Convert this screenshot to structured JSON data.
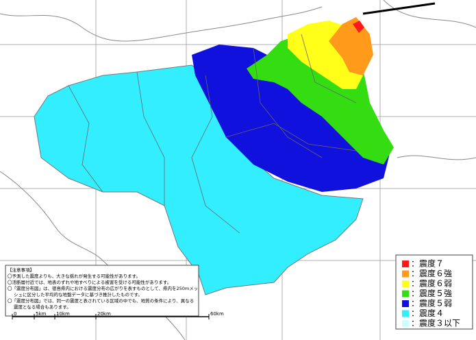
{
  "notes": {
    "title": "【注意事項】",
    "lines": [
      "〇予測した震度よりも、大きな揺れが発生する可能性があります。",
      "〇活断層付近では、地表のずれや地すべりによる被害を受ける可能性があります。",
      "〇「震度分布図」は、徳島県内における震度分布の広がりを表すものとして、県内を250mメッ",
      "シュに区分した平均的な地盤データに基づき推計したものです。",
      "〇「震度分布図」では、同一の震度と表されている区域の中でも、地質の条件により、異なる",
      "震度となる場合もあります。"
    ]
  },
  "scale": {
    "labels": [
      "0",
      "5km",
      "10km",
      "20km",
      "60km"
    ]
  },
  "legend": [
    {
      "label": "：震度７",
      "color": "#ff1a1a"
    },
    {
      "label": "：震度６強",
      "color": "#ff9a1a"
    },
    {
      "label": "：震度６弱",
      "color": "#ffff1a"
    },
    {
      "label": "：震度５強",
      "color": "#33dd11"
    },
    {
      "label": "：震度５弱",
      "color": "#1111dd"
    },
    {
      "label": "：震度４",
      "color": "#33eeff"
    },
    {
      "label": "：震度３以下",
      "color": "#ccffff"
    }
  ]
}
